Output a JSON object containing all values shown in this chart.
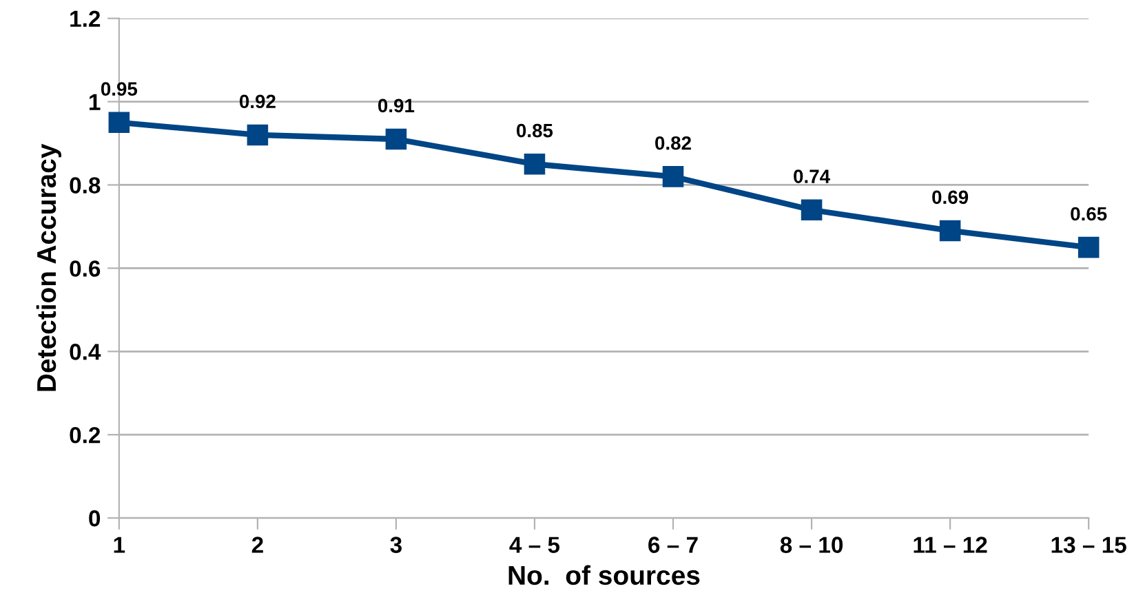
{
  "chart_data": {
    "type": "line",
    "xlabel": "No.  of sources",
    "ylabel": "Detection Accuracy",
    "categories": [
      "1",
      "2",
      "3",
      "4 – 5",
      "6 – 7",
      "8 – 10",
      "11 – 12",
      "13 – 15"
    ],
    "series": [
      {
        "color": "#004586",
        "values": [
          0.95,
          0.92,
          0.91,
          0.85,
          0.82,
          0.74,
          0.69,
          0.65
        ]
      }
    ],
    "ylim": [
      0,
      1.2
    ],
    "yticks": [
      0,
      0.2,
      0.4,
      0.6,
      0.8,
      1,
      1.2
    ],
    "grid": "y",
    "marker": "square",
    "line_style": "solid",
    "data_labels": true,
    "legend": false
  }
}
